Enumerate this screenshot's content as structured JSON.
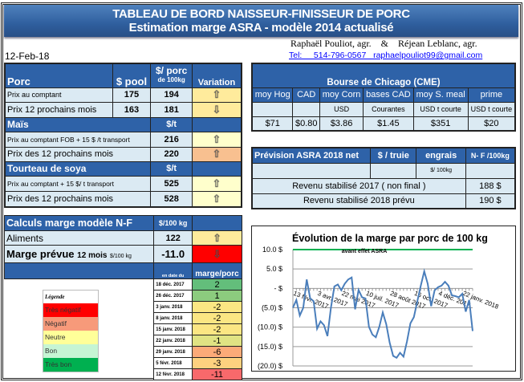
{
  "header": {
    "title": "TABLEAU DE BORD NAISSEUR-FINISSEUR DE PORC",
    "subtitle": "Estimation marge ASRA - modèle 2014 actualisé",
    "authors": "Raphaël Pouliot, agr.    &    Réjean Leblanc, agr.",
    "contact": "Tel:     514-796-0567   raphaelpouliot99@gmail.com",
    "date": "12-Feb-18"
  },
  "prices": {
    "porc": {
      "label": "Porc",
      "col_pool": "$ pool",
      "col_porc": "$/ porc",
      "col_porc_sub": "de 100kg",
      "col_var": "Variation",
      "rows": [
        {
          "label": "Prix au comptant",
          "pool": "175",
          "porc": "194",
          "variation": "up",
          "arrow": "⇧"
        },
        {
          "label": "Prix 12 prochains mois",
          "pool": "163",
          "porc": "181",
          "variation": "down",
          "arrow": "⇩"
        }
      ]
    },
    "mais": {
      "label": "Maïs",
      "unit": "$/t",
      "rows": [
        {
          "label": "Prix au comptant  FOB + 15 $ /t transport",
          "value": "216",
          "variation": "up",
          "arrow": "⇧"
        },
        {
          "label": "Prix des 12 prochains mois",
          "value": "220",
          "variation": "up",
          "arrow": "⇧"
        }
      ]
    },
    "soya": {
      "label": "Tourteau de soya",
      "unit": "$/t",
      "rows": [
        {
          "label": "Prix au comptant  + 15 $/ t  transport",
          "value": "525",
          "variation": "up",
          "arrow": "⇧"
        },
        {
          "label": "Prix des 12 prochains mois",
          "value": "528",
          "variation": "up",
          "arrow": "⇧"
        }
      ]
    }
  },
  "cme": {
    "title": "Bourse de Chicago (CME)",
    "cols": [
      "moy Hog",
      "CAD",
      "moy Corn",
      "bases CAD",
      "moy S. meal",
      "prime"
    ],
    "subs": [
      "",
      "",
      "USD",
      "Courantes",
      "USD t courte",
      "USD t courte"
    ],
    "values": [
      "$71",
      "$0.80",
      "$3.86",
      "$1.45",
      "$351",
      "$20"
    ]
  },
  "asra": {
    "title": "Prévision ASRA 2018 net",
    "col_truie": "$ / truie",
    "col_engrais": "engrais",
    "col_nf": "N- F /100kg",
    "engrais_unit": "$/ 100kg",
    "rows": [
      {
        "label": "Revenu stabilisé 2017 ( non final )",
        "value": "188 $"
      },
      {
        "label": "Revenu stabilisé 2018 prévu",
        "value": "190 $"
      }
    ]
  },
  "calc": {
    "title": "Calculs marge  modèle N-F",
    "unit": "$/100 kg",
    "aliments_label": "Aliments",
    "aliments_value": "122",
    "aliments_arrow": "⇧",
    "marge_label": "Marge prévue",
    "marge_sub": "12 mois",
    "marge_unit": "$/100 kg",
    "marge_value": "-11.0",
    "marge_arrow": "⇩",
    "col_date": "en date du",
    "col_marge": "marge/porc",
    "history": [
      {
        "date": "18 déc. 2017",
        "value": "2",
        "color": "#63be7b"
      },
      {
        "date": "26 déc. 2017",
        "value": "1",
        "color": "#8ccb7e"
      },
      {
        "date": "3 janv. 2018",
        "value": "-2",
        "color": "#fbe683"
      },
      {
        "date": "8 janv. 2018",
        "value": "-2",
        "color": "#fbe683"
      },
      {
        "date": "15 janv. 2018",
        "value": "-2",
        "color": "#fbe683"
      },
      {
        "date": "22 janv. 2018",
        "value": "-1",
        "color": "#e0e383"
      },
      {
        "date": "29 janv. 2018",
        "value": "-6",
        "color": "#fcaa78"
      },
      {
        "date": "5 févr. 2018",
        "value": "-3",
        "color": "#fdd17f"
      },
      {
        "date": "12 févr. 2018",
        "value": "-11",
        "color": "#f8696b"
      }
    ]
  },
  "legend": {
    "title": "Légende",
    "items": [
      {
        "label": "Très négatif",
        "color": "#ff0000"
      },
      {
        "label": "Négatif",
        "color": "#f79a7a"
      },
      {
        "label": "Neutre",
        "color": "#ffff99"
      },
      {
        "label": "Bon",
        "color": "#c6f5d4"
      },
      {
        "label": "Très bon",
        "color": "#00b050"
      }
    ]
  },
  "colors": {
    "header_blue": "#2e62a8",
    "up_yellow": "#ffeb9c",
    "pale_yellow": "#ffffcc",
    "orange": "#f8c090",
    "red": "#ff0000",
    "line": "#4a7ebb",
    "target_line": "#00b050"
  },
  "chart_data": {
    "type": "line",
    "title": "Évolution de la marge par porc de 100 kg",
    "subtitle": "avant effet ASRA",
    "ylim": [
      -20,
      10
    ],
    "yticks": [
      10,
      5,
      0,
      -5,
      -10,
      -15,
      -20
    ],
    "ytick_labels": [
      "10.0 $",
      "5.0 $",
      "-   $",
      "(5.0) $",
      "(10.0) $",
      "(15.0) $",
      "(20.0) $"
    ],
    "grid": true,
    "reference_line": 10,
    "xtick_labels": [
      "13 févr. 2017",
      "3 avr. 2017",
      "22 mai 2017",
      "10 juil. 2017",
      "28 août 2017",
      "16 oct. 2017",
      "4 déc. 2017",
      "22 janv. 2018"
    ],
    "x": [
      "2017-02-13",
      "2017-02-20",
      "2017-02-27",
      "2017-03-06",
      "2017-03-13",
      "2017-03-20",
      "2017-03-27",
      "2017-04-03",
      "2017-04-10",
      "2017-04-17",
      "2017-04-24",
      "2017-05-01",
      "2017-05-08",
      "2017-05-15",
      "2017-05-22",
      "2017-05-29",
      "2017-06-05",
      "2017-06-12",
      "2017-06-19",
      "2017-06-26",
      "2017-07-03",
      "2017-07-10",
      "2017-07-17",
      "2017-07-24",
      "2017-07-31",
      "2017-08-07",
      "2017-08-14",
      "2017-08-21",
      "2017-08-28",
      "2017-09-04",
      "2017-09-11",
      "2017-09-18",
      "2017-09-25",
      "2017-10-02",
      "2017-10-09",
      "2017-10-16",
      "2017-10-23",
      "2017-10-30",
      "2017-11-06",
      "2017-11-13",
      "2017-11-20",
      "2017-11-27",
      "2017-12-04",
      "2017-12-11",
      "2017-12-18",
      "2017-12-25",
      "2018-01-01",
      "2018-01-08",
      "2018-01-15",
      "2018-01-22",
      "2018-01-29",
      "2018-02-05",
      "2018-02-12"
    ],
    "values": [
      -5,
      -3,
      -7,
      -5,
      2.3,
      -2.6,
      -3.3,
      -10.4,
      -8.5,
      -9.5,
      -12.3,
      -5,
      0.5,
      1,
      -0.5,
      1.2,
      2.3,
      2.8,
      -5.4,
      -0.4,
      -2.3,
      -2.6,
      -9.9,
      -11.9,
      -12.6,
      -9.9,
      -6.2,
      -9.2,
      -14,
      -17.4,
      -17.9,
      -16.6,
      -17.6,
      -13.7,
      -9,
      -7.4,
      -3.3,
      0.7,
      4.4,
      1.2,
      -4.6,
      -0.5,
      0.3,
      0.7,
      1.7,
      0.7,
      -1.8,
      -2,
      -2.3,
      -1.4,
      -6,
      -3,
      -11
    ]
  }
}
